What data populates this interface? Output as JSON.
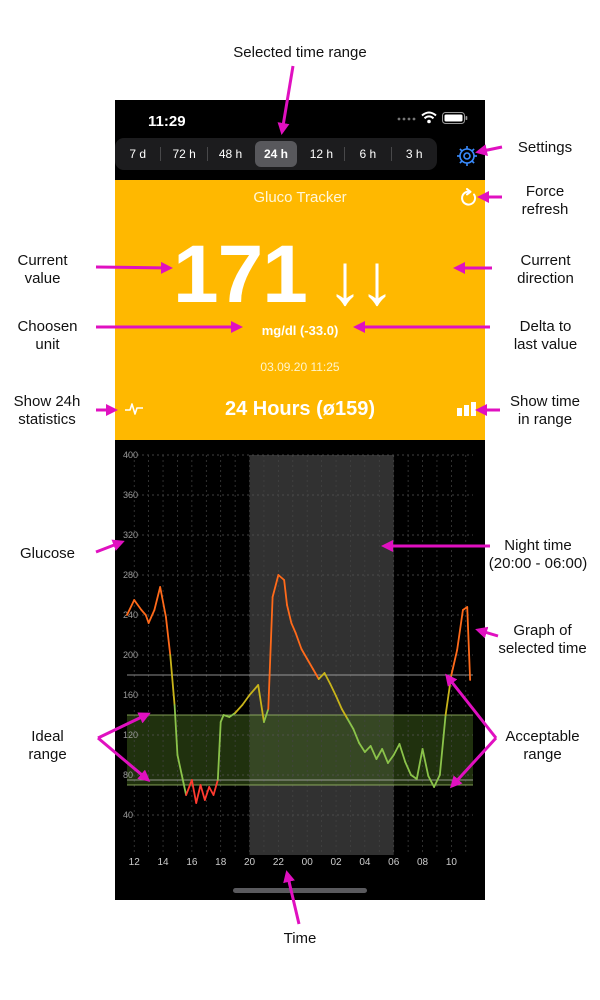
{
  "annotations": {
    "selected_time_range": "Selected time range",
    "settings": "Settings",
    "force_refresh": [
      "Force",
      "refresh"
    ],
    "current_value": [
      "Current",
      "value"
    ],
    "current_direction": [
      "Current",
      "direction"
    ],
    "choosen_unit": [
      "Choosen",
      "unit"
    ],
    "delta_to_last_value": [
      "Delta to",
      "last value"
    ],
    "show_24h_statistics": [
      "Show 24h",
      "statistics"
    ],
    "show_time_in_range": [
      "Show time",
      "in range"
    ],
    "glucose": "Glucose",
    "night_time": [
      "Night time",
      "(20:00 - 06:00)"
    ],
    "graph_of_selected_time": [
      "Graph of",
      "selected time"
    ],
    "ideal_range": [
      "Ideal",
      "range"
    ],
    "acceptable_range": [
      "Acceptable",
      "range"
    ],
    "time": "Time"
  },
  "status_bar": {
    "time": "11:29",
    "icons": [
      "signal-dots-icon",
      "wifi-icon",
      "battery-icon"
    ]
  },
  "time_range": {
    "options": [
      "7 d",
      "72 h",
      "48 h",
      "24 h",
      "12 h",
      "6 h",
      "3 h"
    ],
    "selected": "24 h"
  },
  "header": {
    "title": "Gluco Tracker",
    "value": "171",
    "direction": "↓↓",
    "unit_delta": "mg/dl (-33.0)",
    "timestamp": "03.09.20 11:25",
    "stats_label": "24 Hours   (ø159)"
  },
  "colors": {
    "accent": "#ffb800",
    "gear": "#3a8cff",
    "annotation": "#e010c0",
    "night": "#3a3a3a",
    "ideal_band": "#3a5a1a"
  },
  "chart_data": {
    "type": "line",
    "ylim": [
      0,
      400
    ],
    "y_ticks": [
      400,
      360,
      320,
      280,
      240,
      200,
      160,
      120,
      80,
      40
    ],
    "x_ticks": [
      "12",
      "14",
      "16",
      "18",
      "20",
      "22",
      "00",
      "02",
      "04",
      "06",
      "08",
      "10"
    ],
    "x_range_hours": [
      11.5,
      35.5
    ],
    "night_range_hours": [
      20,
      30
    ],
    "ideal_range": [
      70,
      140
    ],
    "acceptable_range": [
      75,
      180
    ],
    "series": [
      {
        "x": [
          11.5,
          12.0,
          12.5,
          12.8,
          13.0,
          13.4,
          13.8,
          14.2,
          14.5,
          14.8,
          15.0,
          15.3,
          15.6,
          16.0,
          16.3,
          16.6,
          16.9,
          17.2,
          17.5,
          17.8,
          18.0,
          18.2,
          18.6,
          19.0,
          19.5,
          20.0,
          20.6,
          21.0,
          21.3,
          21.6,
          22.0,
          22.4,
          22.6,
          22.9,
          23.2,
          23.6,
          24.0,
          24.4,
          24.8,
          25.2,
          25.6,
          26.0,
          26.4,
          26.8,
          27.2,
          27.6,
          28.0,
          28.4,
          28.8,
          29.2,
          29.6,
          30.0,
          30.4,
          30.8,
          31.2,
          31.6,
          32.0,
          32.4,
          32.8,
          33.2,
          33.6,
          34.0,
          34.4,
          34.8,
          35.1,
          35.3
        ],
        "y": [
          240,
          255,
          245,
          240,
          232,
          245,
          268,
          238,
          200,
          150,
          100,
          80,
          60,
          75,
          52,
          70,
          55,
          68,
          60,
          75,
          133,
          140,
          138,
          142,
          150,
          160,
          170,
          133,
          146,
          258,
          280,
          275,
          250,
          232,
          222,
          206,
          196,
          186,
          176,
          182,
          171,
          159,
          146,
          136,
          126,
          112,
          103,
          109,
          96,
          106,
          92,
          100,
          111,
          93,
          80,
          76,
          106,
          79,
          68,
          80,
          140,
          180,
          205,
          245,
          248,
          175
        ]
      }
    ]
  }
}
